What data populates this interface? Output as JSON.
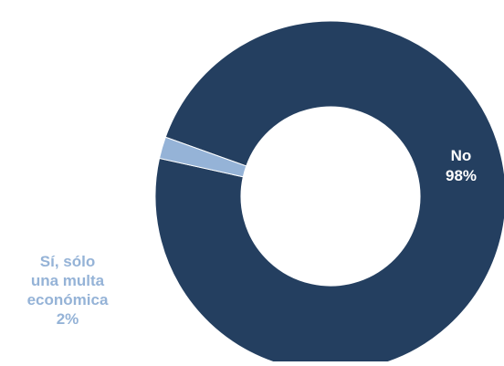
{
  "chart_data": {
    "type": "pie",
    "donut": true,
    "slices": [
      {
        "label": "No",
        "value": 98,
        "value_label": "98%",
        "color": "#243F60",
        "label_color": "#ffffff"
      },
      {
        "label": "Sí, sólo una multa económica",
        "label_lines": [
          "Sí, sólo",
          "una multa",
          "económica"
        ],
        "value": 2,
        "value_label": "2%",
        "color": "#95B3D7",
        "label_color": "#95B3D7"
      }
    ],
    "legend": "none"
  }
}
